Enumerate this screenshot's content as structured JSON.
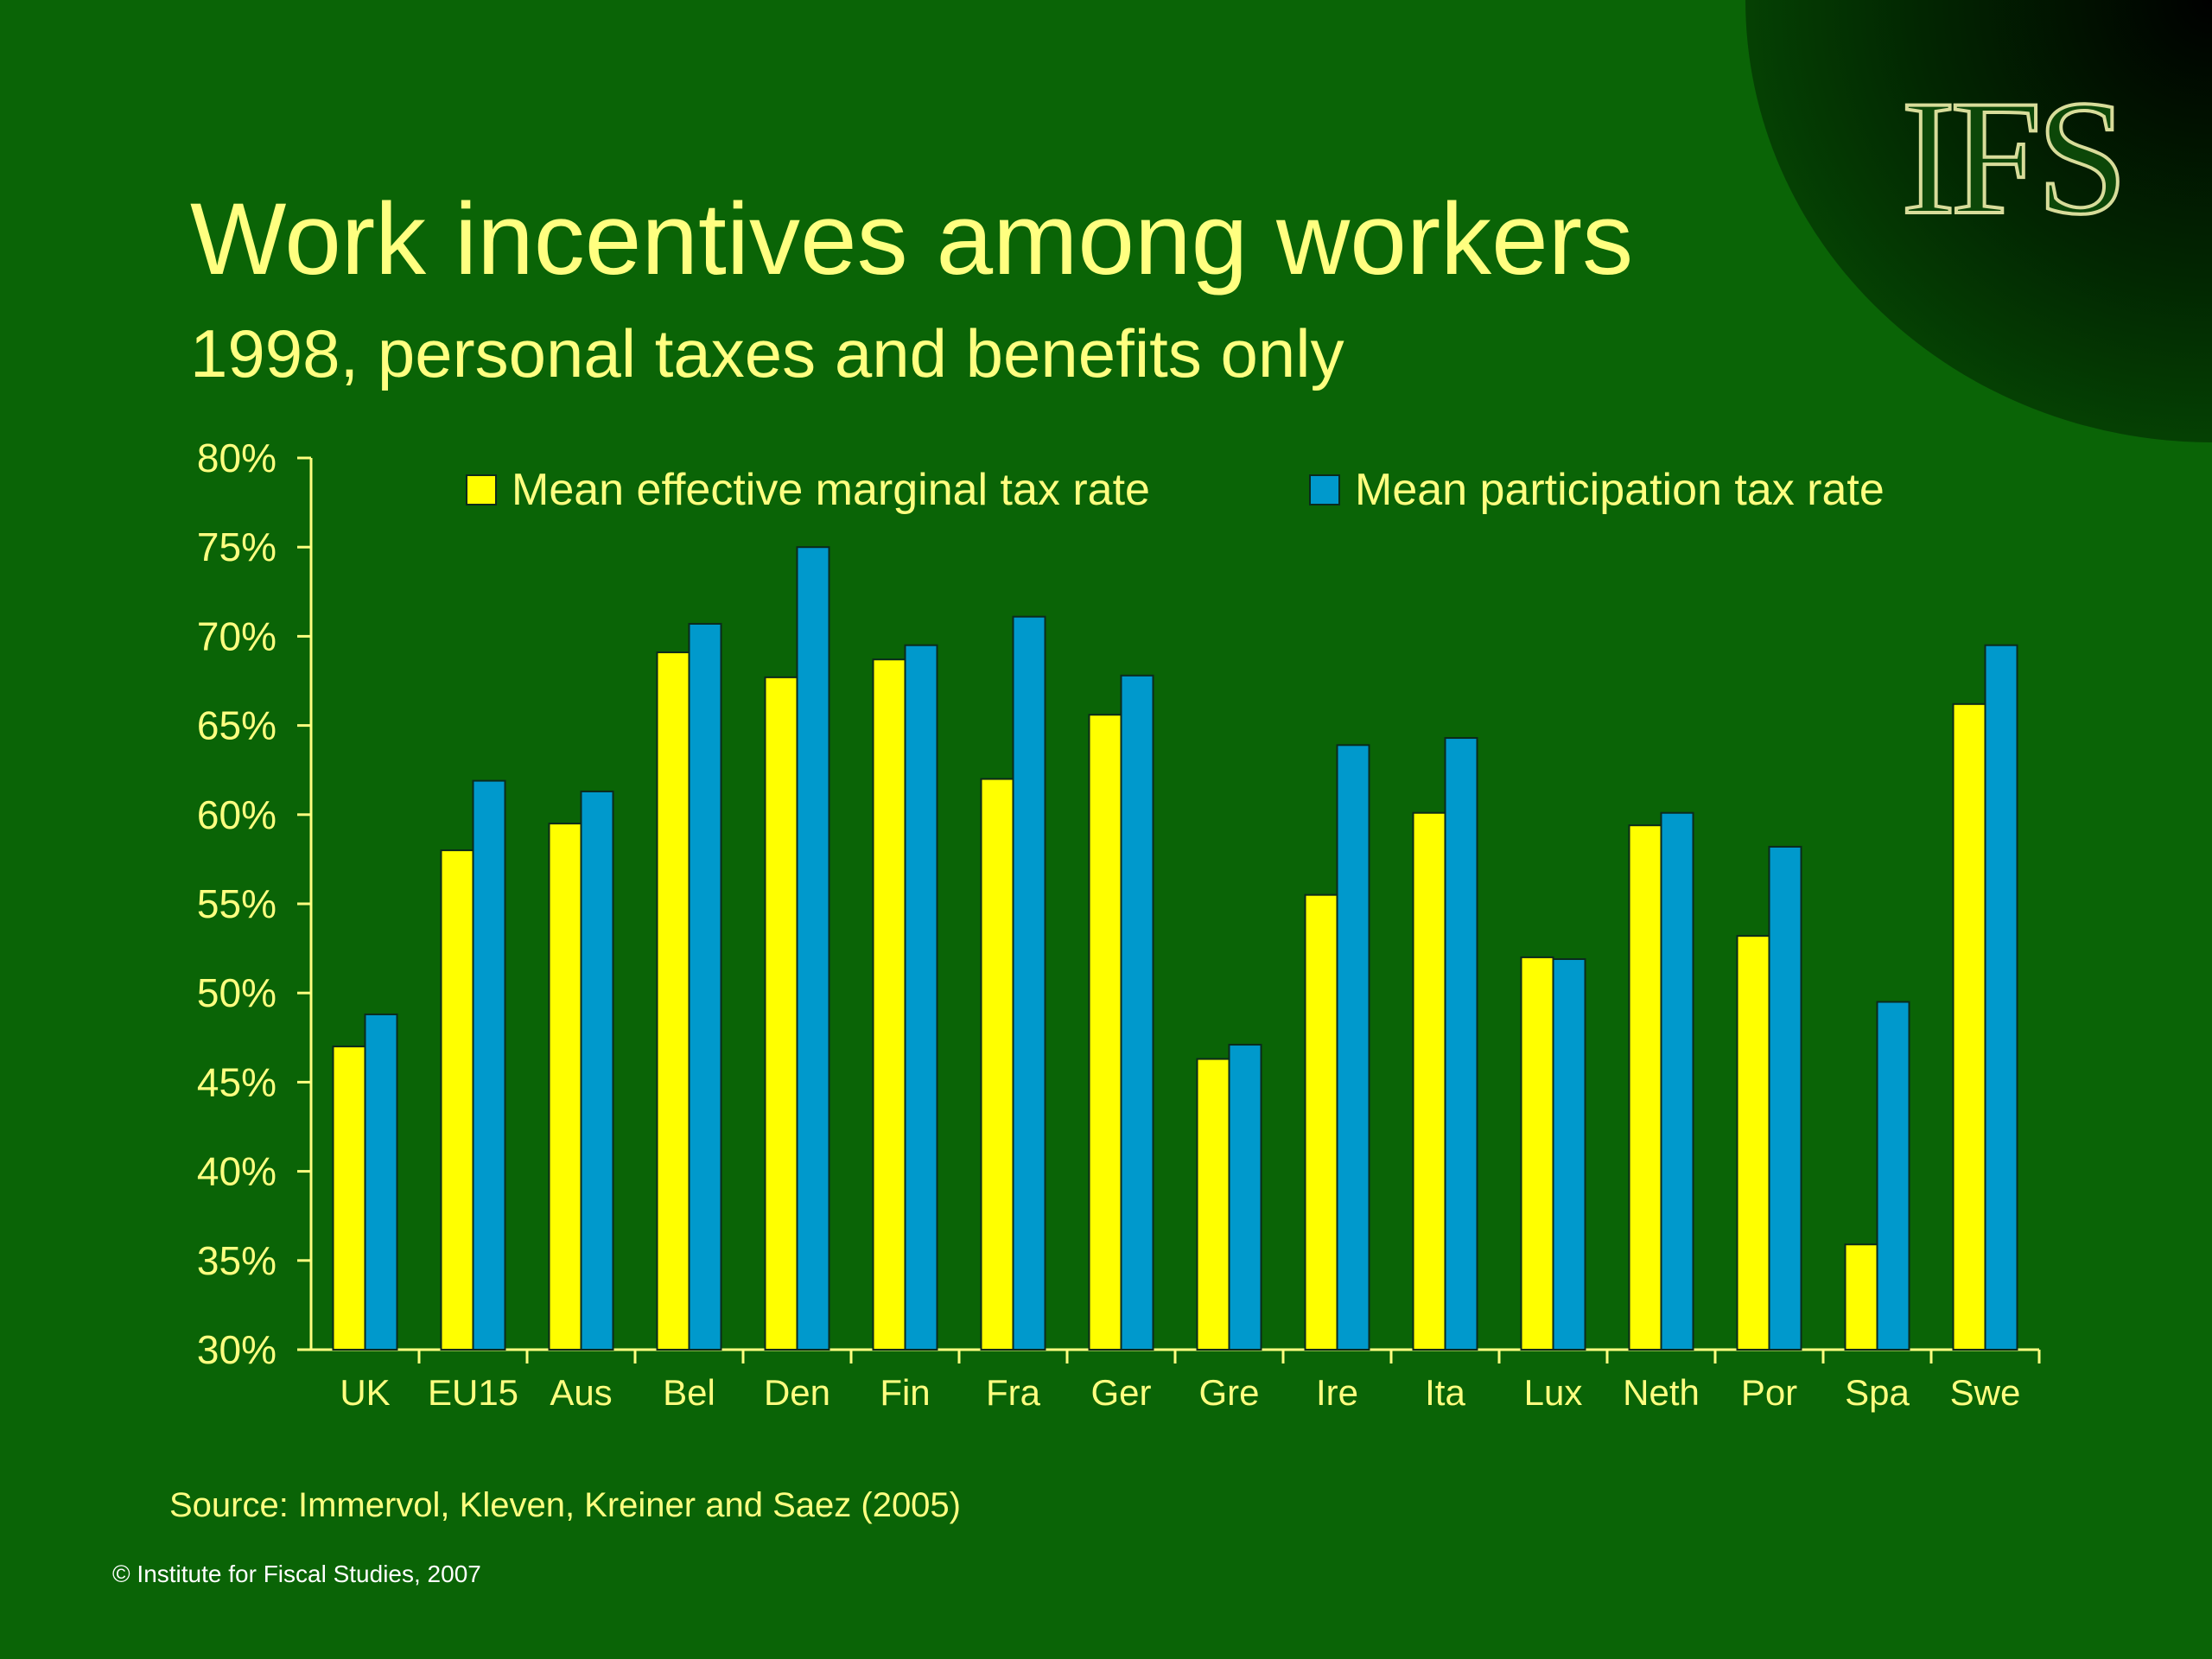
{
  "slide": {
    "logo_text": "IFS",
    "title": "Work incentives among workers",
    "subtitle": "1998, personal taxes and benefits only",
    "source": "Source: Immervol, Kleven, Kreiner and Saez (2005)",
    "copyright": "© Institute for Fiscal Studies, 2007"
  },
  "colors": {
    "background": "#0a6406",
    "title_text": "#ffff80",
    "series_marginal": "#ffff00",
    "series_participation": "#0099cc",
    "axis": "#ffff80"
  },
  "chart_data": {
    "type": "bar",
    "title": "",
    "xlabel": "",
    "ylabel": "",
    "categories": [
      "UK",
      "EU15",
      "Aus",
      "Bel",
      "Den",
      "Fin",
      "Fra",
      "Ger",
      "Gre",
      "Ire",
      "Ita",
      "Lux",
      "Neth",
      "Por",
      "Spa",
      "Swe"
    ],
    "series": [
      {
        "name": "Mean effective marginal tax rate",
        "color": "#ffff00",
        "values": [
          47.0,
          58.0,
          59.5,
          69.1,
          67.7,
          68.7,
          62.0,
          65.6,
          46.3,
          55.5,
          60.1,
          52.0,
          59.4,
          53.2,
          35.9,
          66.2
        ]
      },
      {
        "name": "Mean participation tax rate",
        "color": "#0099cc",
        "values": [
          48.8,
          61.9,
          61.3,
          70.7,
          75.0,
          69.5,
          71.1,
          67.8,
          47.1,
          63.9,
          64.3,
          51.9,
          60.1,
          58.2,
          49.5,
          69.5
        ]
      }
    ],
    "ylim": [
      30,
      80
    ],
    "yticks": [
      "30%",
      "35%",
      "40%",
      "45%",
      "50%",
      "55%",
      "60%",
      "65%",
      "70%",
      "75%",
      "80%"
    ],
    "legend_position": "top",
    "grid": false
  }
}
